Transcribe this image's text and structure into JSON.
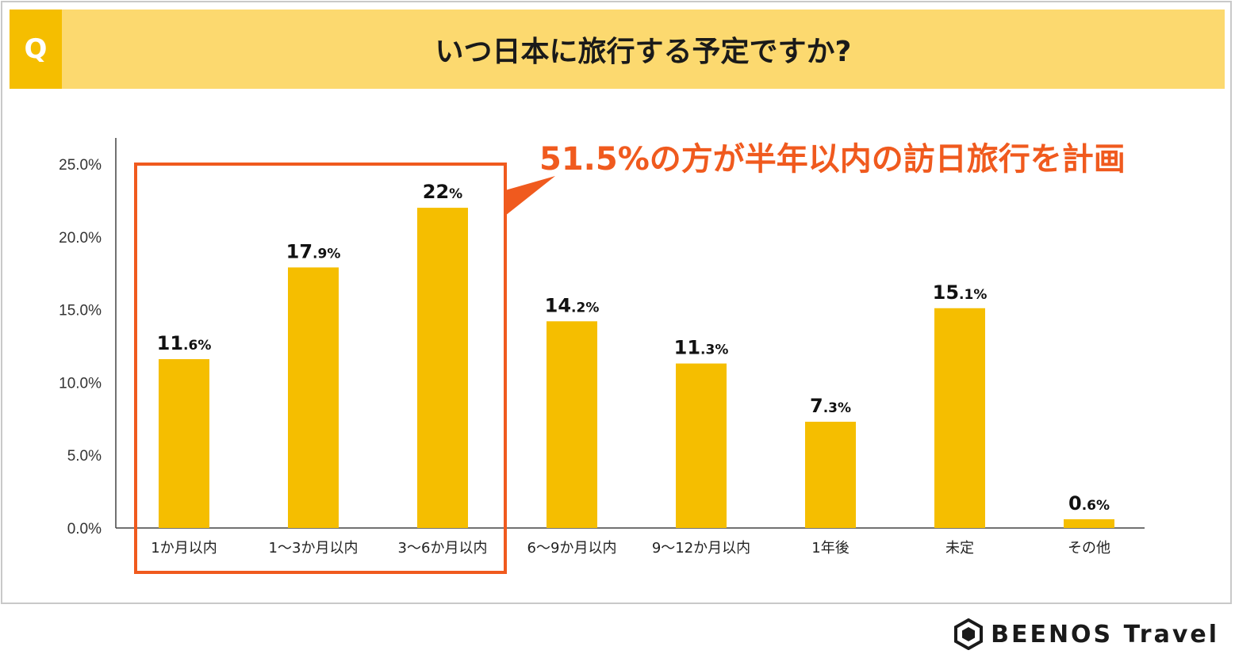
{
  "header": {
    "badge": "Q",
    "title": "いつ日本に旅行する予定ですか?"
  },
  "callout": "51.5%の方が半年以内の訪日旅行を計画",
  "logo": {
    "text": "BEENOS Travel",
    "icon": "hexagon-logo-icon"
  },
  "colors": {
    "bar": "#f5be00",
    "highlight": "#f05a1e",
    "header_bg": "#fcd96f",
    "badge_bg": "#f5be00"
  },
  "chart_data": {
    "type": "bar",
    "categories": [
      "1か月以内",
      "1〜3か月以内",
      "3〜6か月以内",
      "6〜9か月以内",
      "9〜12か月以内",
      "1年後",
      "未定",
      "その他"
    ],
    "values": [
      11.6,
      17.9,
      22,
      14.2,
      11.3,
      7.3,
      15.1,
      0.6
    ],
    "value_labels": [
      {
        "int": "11",
        "dec": ".6%"
      },
      {
        "int": "17",
        "dec": ".9%"
      },
      {
        "int": "22",
        "dec": "%"
      },
      {
        "int": "14",
        "dec": ".2%"
      },
      {
        "int": "11",
        "dec": ".3%"
      },
      {
        "int": "7",
        "dec": ".3%"
      },
      {
        "int": "15",
        "dec": ".1%"
      },
      {
        "int": "0",
        "dec": ".6%"
      }
    ],
    "y_ticks": [
      "0.0%",
      "5.0%",
      "10.0%",
      "15.0%",
      "20.0%",
      "25.0%"
    ],
    "ylim": [
      0,
      25
    ],
    "highlight_categories": [
      "1か月以内",
      "1〜3か月以内",
      "3〜6か月以内"
    ],
    "grid": false
  }
}
